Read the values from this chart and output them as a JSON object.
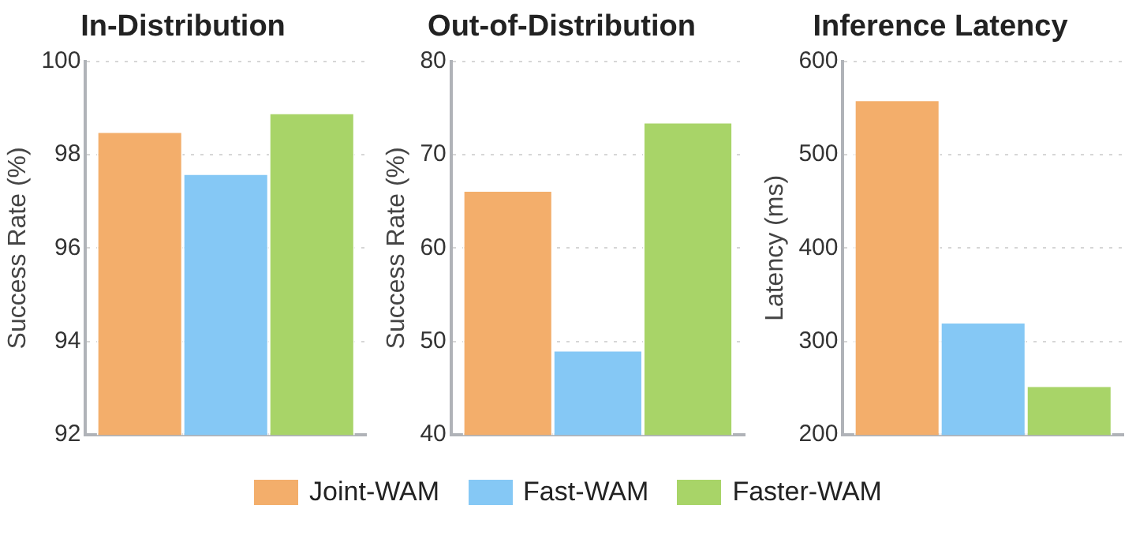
{
  "chart_data": [
    {
      "type": "bar",
      "title": "In-Distribution",
      "ylabel": "Success Rate (%)",
      "categories": [
        null
      ],
      "ylim": [
        92,
        100
      ],
      "yticks": [
        92,
        94,
        96,
        98,
        100
      ],
      "grid": "y",
      "legend": "bottom",
      "series": [
        {
          "name": "Joint-WAM",
          "color": "#f3ae6b",
          "values": [
            98.5
          ]
        },
        {
          "name": "Fast-WAM",
          "color": "#85c8f5",
          "values": [
            97.6
          ]
        },
        {
          "name": "Faster-WAM",
          "color": "#a8d468",
          "values": [
            98.9
          ]
        }
      ]
    },
    {
      "type": "bar",
      "title": "Out-of-Distribution",
      "ylabel": "Success Rate (%)",
      "categories": [
        null
      ],
      "ylim": [
        40,
        80
      ],
      "yticks": [
        40,
        50,
        60,
        70,
        80
      ],
      "grid": "y",
      "series": [
        {
          "color": "#f3ae6b",
          "values": [
            66.2
          ]
        },
        {
          "color": "#85c8f5",
          "values": [
            49.1
          ]
        },
        {
          "color": "#a8d468",
          "values": [
            73.5
          ]
        }
      ]
    },
    {
      "type": "bar",
      "title": "Inference Latency",
      "ylabel": "Latency (ms)",
      "categories": [
        null
      ],
      "ylim": [
        200,
        600
      ],
      "yticks": [
        200,
        300,
        400,
        500,
        600
      ],
      "grid": "y",
      "series": [
        {
          "color": "#f3ae6b",
          "values": [
            559
          ]
        },
        {
          "color": "#85c8f5",
          "values": [
            321
          ]
        },
        {
          "color": "#a8d468",
          "values": [
            253
          ]
        }
      ]
    }
  ]
}
